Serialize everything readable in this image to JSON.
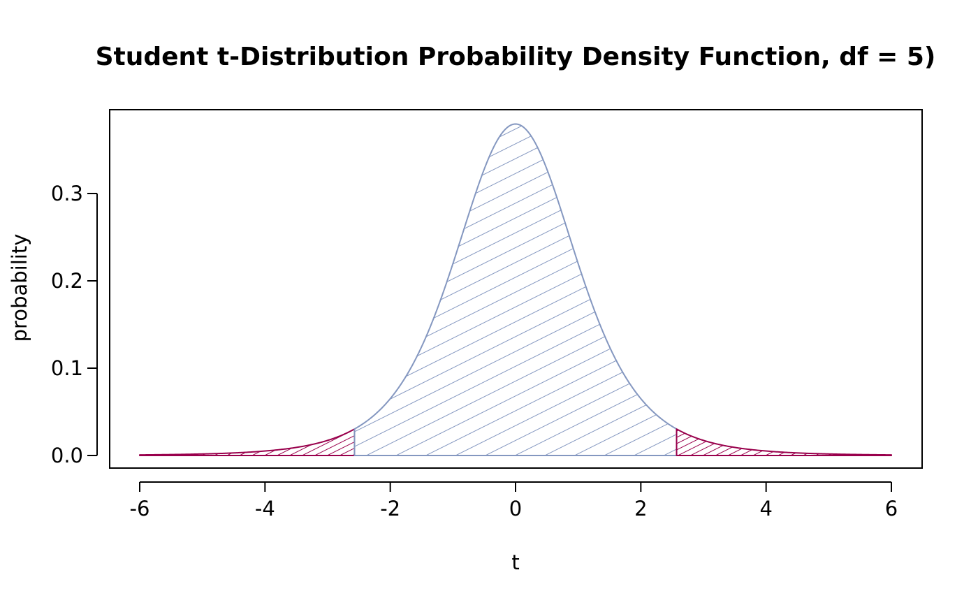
{
  "chart_data": {
    "type": "area",
    "title": "Student t-Distribution Probability Density Function, df = 5)",
    "xlabel": "t",
    "ylabel": "probability",
    "df": 5,
    "xlim": [
      -6,
      6
    ],
    "ylim": [
      0,
      0.38
    ],
    "x_ticks": [
      -6,
      -4,
      -2,
      0,
      2,
      4,
      6
    ],
    "x_tick_labels": [
      "-6",
      "-4",
      "-2",
      "0",
      "2",
      "4",
      "6"
    ],
    "y_ticks": [
      0.0,
      0.1,
      0.2,
      0.3
    ],
    "y_tick_labels": [
      "0.0",
      "0.1",
      "0.2",
      "0.3"
    ],
    "grid": false,
    "regions": [
      {
        "from": -6,
        "to": -2.571,
        "color": "#99004c",
        "hatch": "dense"
      },
      {
        "from": -2.571,
        "to": 2.571,
        "color": "#8497c0",
        "hatch": "sparse"
      },
      {
        "from": 2.571,
        "to": 6,
        "color": "#99004c",
        "hatch": "dense"
      }
    ]
  }
}
